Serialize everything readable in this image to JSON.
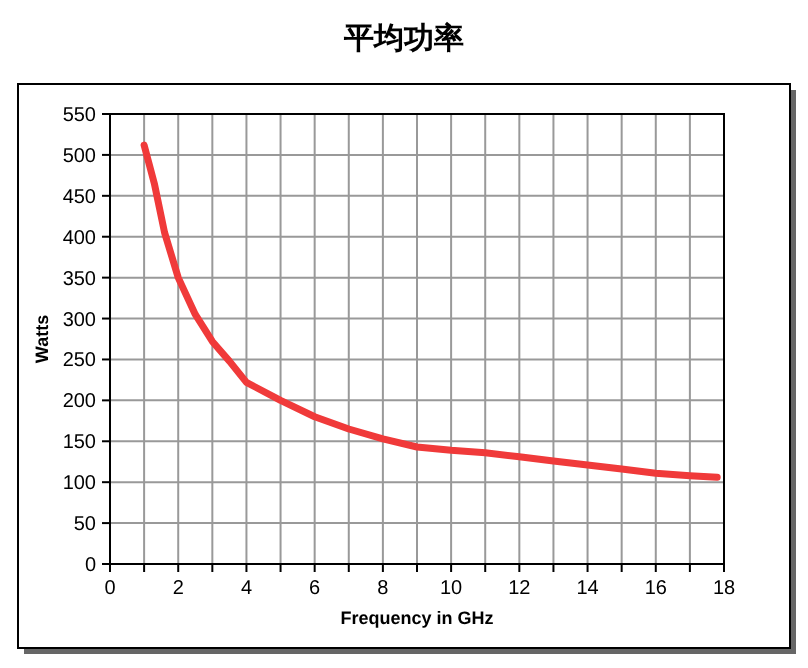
{
  "chart_data": {
    "type": "line",
    "title": "平均功率",
    "xlabel": "Frequency in GHz",
    "ylabel": "Watts",
    "x": [
      1,
      1.3,
      1.6,
      2,
      2.5,
      3,
      3.5,
      4,
      5,
      6,
      7,
      8,
      9,
      10,
      11,
      12,
      13,
      14,
      15,
      16,
      17,
      17.8
    ],
    "series": [
      {
        "color": "#f03a3a",
        "values": [
          512,
          465,
          405,
          350,
          305,
          272,
          248,
          222,
          200,
          180,
          165,
          153,
          143,
          139,
          136,
          131,
          126,
          121,
          116,
          111,
          108,
          106
        ]
      }
    ],
    "xlim": [
      0,
      18
    ],
    "ylim": [
      0,
      550
    ],
    "xticks": [
      0,
      {
        "value": 1,
        "label": null
      },
      2,
      {
        "value": 3,
        "label": null
      },
      4,
      {
        "value": 5,
        "label": null
      },
      6,
      {
        "value": 7,
        "label": null
      },
      8,
      {
        "value": 9,
        "label": null
      },
      10,
      {
        "value": 11,
        "label": null
      },
      12,
      {
        "value": 13,
        "label": null
      },
      14,
      {
        "value": 15,
        "label": null
      },
      16,
      {
        "value": 17,
        "label": null
      },
      18
    ],
    "yticks": [
      0,
      50,
      100,
      150,
      200,
      250,
      300,
      350,
      400,
      450,
      500,
      550
    ],
    "grid": true,
    "marker": "none",
    "line_style": "solid"
  }
}
